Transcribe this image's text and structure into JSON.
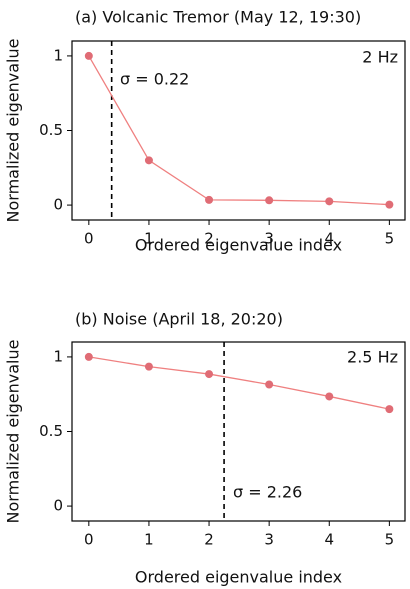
{
  "chart_data": [
    {
      "type": "line",
      "title": "(a) Volcanic Tremor (May 12, 19:30)",
      "xlabel": "Ordered eigenvalue index",
      "ylabel": "Normalized eigenvalue",
      "x": [
        0,
        1,
        2,
        3,
        4,
        5
      ],
      "values": [
        1,
        0.3,
        0.035,
        0.032,
        0.025,
        0.003
      ],
      "color": "#ef8080",
      "marker_color": "#e06c75",
      "xlim": [
        -0.28,
        5.26
      ],
      "ylim": [
        -0.1,
        1.1
      ],
      "xticks": [
        0,
        1,
        2,
        3,
        4,
        5
      ],
      "yticks": [
        0,
        0.5,
        1
      ],
      "vline": 0.38,
      "annotations": [
        "2 Hz",
        "σ = 0.22"
      ]
    },
    {
      "type": "line",
      "title": "(b) Noise (April 18, 20:20)",
      "xlabel": "Ordered eigenvalue index",
      "ylabel": "Normalized eigenvalue",
      "x": [
        0,
        1,
        2,
        3,
        4,
        5
      ],
      "values": [
        1,
        0.935,
        0.885,
        0.815,
        0.735,
        0.65
      ],
      "color": "#ef8080",
      "marker_color": "#e06c75",
      "xlim": [
        -0.28,
        5.26
      ],
      "ylim": [
        -0.1,
        1.1
      ],
      "xticks": [
        0,
        1,
        2,
        3,
        4,
        5
      ],
      "yticks": [
        0,
        0.5,
        1
      ],
      "vline": 2.25,
      "annotations": [
        "2.5 Hz",
        "σ = 2.26"
      ]
    }
  ]
}
